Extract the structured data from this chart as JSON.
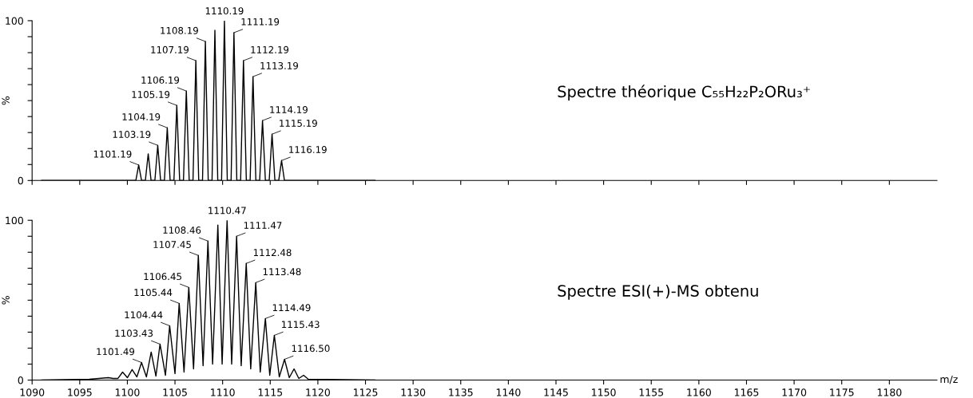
{
  "chart_data": [
    {
      "type": "line",
      "xlim": [
        1090,
        1185
      ],
      "ylim": [
        0,
        100
      ],
      "xticks": [
        1090,
        1095,
        1100,
        1105,
        1110,
        1115,
        1120,
        1125,
        1130,
        1135,
        1140,
        1145,
        1150,
        1155,
        1160,
        1165,
        1170,
        1175,
        1180
      ],
      "yticks": [
        0,
        {
          "value": 10,
          "label": null
        },
        {
          "value": 20,
          "label": null
        },
        {
          "value": 30,
          "label": null
        },
        {
          "value": 40,
          "label": null
        },
        {
          "value": 50,
          "label": null
        },
        {
          "value": 60,
          "label": null
        },
        {
          "value": 70,
          "label": null
        },
        {
          "value": 80,
          "label": null
        },
        {
          "value": 90,
          "label": null
        },
        100
      ],
      "tick_labels": "y",
      "ylabel": "%",
      "series": [
        {
          "color": "#000000",
          "x": [
            1091,
            1100.89,
            1101.19,
            1101.49,
            1101.89,
            1102.19,
            1102.49,
            1102.89,
            1103.19,
            1103.49,
            1103.89,
            1104.19,
            1104.49,
            1104.89,
            1105.19,
            1105.49,
            1105.89,
            1106.19,
            1106.49,
            1106.89,
            1107.19,
            1107.49,
            1107.89,
            1108.19,
            1108.49,
            1108.89,
            1109.19,
            1109.49,
            1109.89,
            1110.19,
            1110.49,
            1110.89,
            1111.19,
            1111.49,
            1111.89,
            1112.19,
            1112.49,
            1112.89,
            1113.19,
            1113.49,
            1113.89,
            1114.19,
            1114.49,
            1114.89,
            1115.19,
            1115.49,
            1115.89,
            1116.19,
            1116.49,
            1126
          ],
          "values": [
            0,
            0,
            9.7,
            0,
            0,
            16.7,
            0,
            0,
            22,
            0,
            0,
            33,
            0,
            0,
            47,
            0,
            0,
            56,
            0,
            0,
            75,
            0,
            0,
            87,
            0,
            0,
            94,
            0,
            0,
            100,
            0,
            0,
            92.5,
            0,
            0,
            75,
            0,
            0,
            65,
            0,
            0,
            37.5,
            0,
            0,
            29,
            0,
            0,
            12.5,
            0,
            0
          ]
        }
      ],
      "annotations": [
        "Spectre théorique C₅₅H₂₂P₂ORu₃⁺",
        {
          "text": "1101.19",
          "x": 1101.19,
          "y": 9.7
        },
        {
          "text": "1103.19",
          "x": 1103.19,
          "y": 22
        },
        {
          "text": "1104.19",
          "x": 1104.19,
          "y": 33
        },
        {
          "text": "1105.19",
          "x": 1105.19,
          "y": 47
        },
        {
          "text": "1106.19",
          "x": 1106.19,
          "y": 56
        },
        {
          "text": "1107.19",
          "x": 1107.19,
          "y": 75
        },
        {
          "text": "1108.19",
          "x": 1108.19,
          "y": 87
        },
        {
          "text": "1110.19",
          "x": 1110.19,
          "y": 100
        },
        {
          "text": "1111.19",
          "x": 1111.19,
          "y": 92.5
        },
        {
          "text": "1112.19",
          "x": 1112.19,
          "y": 75
        },
        {
          "text": "1113.19",
          "x": 1113.19,
          "y": 65
        },
        {
          "text": "1114.19",
          "x": 1114.19,
          "y": 37.5
        },
        {
          "text": "1115.19",
          "x": 1115.19,
          "y": 29
        },
        {
          "text": "1116.19",
          "x": 1116.19,
          "y": 12.5
        }
      ]
    },
    {
      "type": "line",
      "xlim": [
        1090,
        1185
      ],
      "ylim": [
        0,
        100
      ],
      "xticks": [
        1090,
        1095,
        1100,
        1105,
        1110,
        1115,
        1120,
        1125,
        1130,
        1135,
        1140,
        1145,
        1150,
        1155,
        1160,
        1165,
        1170,
        1175,
        1180
      ],
      "yticks": [
        0,
        {
          "value": 10,
          "label": null
        },
        {
          "value": 20,
          "label": null
        },
        {
          "value": 30,
          "label": null
        },
        {
          "value": 40,
          "label": null
        },
        {
          "value": 50,
          "label": null
        },
        {
          "value": 60,
          "label": null
        },
        {
          "value": 70,
          "label": null
        },
        {
          "value": 80,
          "label": null
        },
        {
          "value": 90,
          "label": null
        },
        100
      ],
      "xlabel": "m/z",
      "ylabel": "%",
      "series": [
        {
          "color": "#000000",
          "x": [
            1091,
            1096,
            1097,
            1098,
            1098.5,
            1099,
            1099.5,
            1100,
            1100.5,
            1101,
            1101.49,
            1102,
            1102.5,
            1103,
            1103.43,
            1104,
            1104.44,
            1105,
            1105.44,
            1105.95,
            1106.45,
            1106.95,
            1107.45,
            1107.95,
            1108.46,
            1108.95,
            1109.5,
            1109.95,
            1110.47,
            1110.95,
            1111.47,
            1111.95,
            1112.48,
            1112.95,
            1113.48,
            1113.95,
            1114.49,
            1114.95,
            1115.43,
            1115.95,
            1116.5,
            1117,
            1117.5,
            1118,
            1118.5,
            1119,
            1126
          ],
          "values": [
            0,
            0.5,
            1,
            1.5,
            1,
            1,
            5,
            1.5,
            6.6,
            2,
            11,
            2,
            17.5,
            2.5,
            22.5,
            3,
            34,
            4,
            48,
            5,
            58,
            7,
            78,
            9,
            87,
            10,
            97,
            10,
            100,
            10,
            90,
            9,
            73,
            7,
            61,
            5,
            38.5,
            3,
            28,
            2,
            13,
            1.5,
            7,
            1,
            3,
            0.5,
            0
          ]
        }
      ],
      "annotations": [
        "Spectre ESI(+)-MS obtenu",
        {
          "text": "1101.49",
          "x": 1101.49,
          "y": 11
        },
        {
          "text": "1103.43",
          "x": 1103.43,
          "y": 22.5
        },
        {
          "text": "1104.44",
          "x": 1104.44,
          "y": 34
        },
        {
          "text": "1105.44",
          "x": 1105.44,
          "y": 48
        },
        {
          "text": "1106.45",
          "x": 1106.45,
          "y": 58
        },
        {
          "text": "1107.45",
          "x": 1107.45,
          "y": 78
        },
        {
          "text": "1108.46",
          "x": 1108.46,
          "y": 87
        },
        {
          "text": "1110.47",
          "x": 1110.47,
          "y": 100
        },
        {
          "text": "1111.47",
          "x": 1111.47,
          "y": 90
        },
        {
          "text": "1112.48",
          "x": 1112.48,
          "y": 73
        },
        {
          "text": "1113.48",
          "x": 1113.48,
          "y": 61
        },
        {
          "text": "1114.49",
          "x": 1114.49,
          "y": 38.5
        },
        {
          "text": "1115.43",
          "x": 1115.43,
          "y": 28
        },
        {
          "text": "1116.50",
          "x": 1116.5,
          "y": 13
        }
      ]
    }
  ]
}
